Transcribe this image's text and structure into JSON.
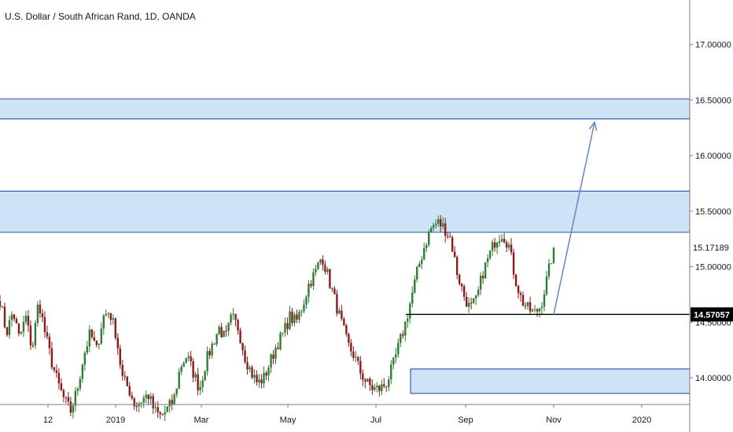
{
  "chart_data": {
    "type": "candlestick",
    "title": "U.S. Dollar / South African Rand, 1D, OANDA",
    "y_axis": {
      "range": [
        13.76,
        17.4
      ],
      "ticks": [
        "17.00000",
        "16.50000",
        "16.00000",
        "15.50000",
        "15.00000",
        "14.50000",
        "14.00000"
      ]
    },
    "x_axis": {
      "ticks": [
        "12",
        "2019",
        "Mar",
        "May",
        "Jul",
        "Sep",
        "Nov",
        "2020"
      ]
    },
    "price_labels": {
      "last": "15.17189",
      "horizontal_line": "14.57057"
    },
    "horizontal_line_price": 14.57057,
    "zones": [
      {
        "name": "upper-resistance-zone",
        "from": 16.33,
        "to": 16.51
      },
      {
        "name": "middle-resistance-zone",
        "from": 15.31,
        "to": 15.68
      },
      {
        "name": "lower-support-zone",
        "from": 13.86,
        "to": 14.08
      }
    ],
    "projection_arrow": {
      "from": 14.57,
      "to": 16.3
    },
    "colors": {
      "up_candle": "#2e7d32",
      "down_candle": "#8b1a1a",
      "zone_fill": "#cfe3f6",
      "zone_border": "#3a62b3",
      "arrow": "#6d8cc6",
      "line": "#000000"
    },
    "close_path": [
      14.7,
      14.4,
      14.6,
      14.35,
      14.55,
      14.25,
      14.7,
      14.4,
      14.15,
      13.95,
      13.8,
      13.7,
      13.9,
      14.2,
      14.4,
      14.25,
      14.55,
      14.6,
      14.4,
      14.0,
      13.9,
      13.75,
      13.8,
      13.85,
      13.7,
      13.65,
      13.72,
      13.8,
      14.1,
      14.2,
      14.05,
      13.9,
      14.15,
      14.3,
      14.45,
      14.35,
      14.55,
      14.45,
      14.2,
      14.05,
      13.95,
      14.0,
      14.15,
      14.3,
      14.4,
      14.55,
      14.5,
      14.65,
      14.85,
      14.95,
      15.1,
      14.9,
      14.7,
      14.5,
      14.3,
      14.2,
      14.05,
      13.95,
      13.9,
      13.9,
      13.95,
      14.1,
      14.3,
      14.5,
      14.75,
      15.0,
      15.2,
      15.35,
      15.4,
      15.35,
      15.25,
      14.95,
      14.75,
      14.62,
      14.7,
      14.95,
      15.1,
      15.25,
      15.3,
      15.2,
      14.9,
      14.7,
      14.62,
      14.58,
      14.65,
      14.9,
      15.172
    ]
  }
}
